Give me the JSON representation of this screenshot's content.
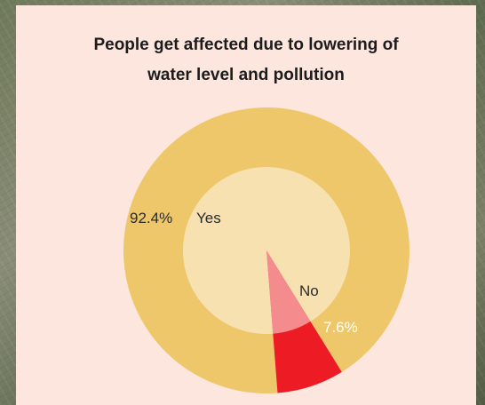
{
  "chart_data": {
    "type": "pie",
    "title": "People get affected due to lowering of water level and pollution",
    "title_lines": [
      "People get affected due to lowering of",
      "water level and pollution"
    ],
    "slices": [
      {
        "label": "Yes",
        "value": 92.4,
        "percent_label": "92.4%",
        "outer_color": "#efc76b",
        "inner_color": "#f8e1b1"
      },
      {
        "label": "No",
        "value": 7.6,
        "percent_label": "7.6%",
        "outer_color": "#ed1c24",
        "inner_color": "#f48b8d"
      }
    ]
  }
}
